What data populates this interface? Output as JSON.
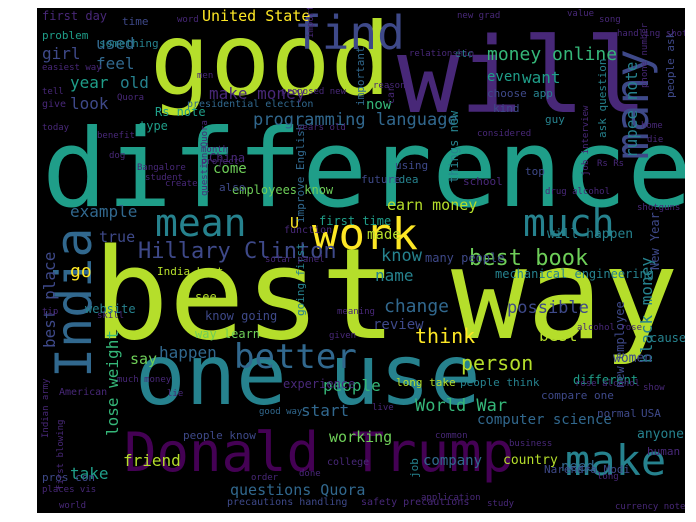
{
  "colors": {
    "background": "#000000",
    "palette": [
      "#440154",
      "#482878",
      "#3e4989",
      "#31688e",
      "#26828e",
      "#1f9e89",
      "#35b779",
      "#6ece58",
      "#b5de2b",
      "#fde725"
    ]
  },
  "words": [
    {
      "text": "difference",
      "color": "#1f9e89"
    },
    {
      "text": "best",
      "color": "#b5de2b"
    },
    {
      "text": "way",
      "color": "#b5de2b"
    },
    {
      "text": "good",
      "color": "#b5de2b"
    },
    {
      "text": "will",
      "color": "#482878"
    },
    {
      "text": "one",
      "color": "#26828e"
    },
    {
      "text": "use",
      "color": "#26828e"
    },
    {
      "text": "Donald Trump",
      "color": "#440154"
    },
    {
      "text": "India",
      "color": "#31688e"
    },
    {
      "text": "find",
      "color": "#3e4989"
    },
    {
      "text": "many",
      "color": "#3e4989"
    },
    {
      "text": "work",
      "color": "#fde725"
    },
    {
      "text": "mean",
      "color": "#26828e"
    },
    {
      "text": "much",
      "color": "#26828e"
    },
    {
      "text": "make",
      "color": "#26828e"
    },
    {
      "text": "better",
      "color": "#31688e"
    },
    {
      "text": "Hillary Clinton",
      "color": "#3e4989"
    },
    {
      "text": "best book",
      "color": "#6ece58"
    },
    {
      "text": "United State",
      "color": "#fde725"
    },
    {
      "text": "money online",
      "color": "#35b779"
    },
    {
      "text": "programming language",
      "color": "#31688e"
    },
    {
      "text": "make money",
      "color": "#482878"
    },
    {
      "text": "earn money",
      "color": "#b5de2b"
    },
    {
      "text": "best place",
      "color": "#3e4989"
    },
    {
      "text": "lose weight",
      "color": "#35b779"
    },
    {
      "text": "black money",
      "color": "#26828e"
    },
    {
      "text": "World War",
      "color": "#35b779"
    },
    {
      "text": "questions Quora",
      "color": "#31688e"
    },
    {
      "text": "rupee note",
      "color": "#26828e"
    },
    {
      "text": "computer science",
      "color": "#31688e"
    },
    {
      "text": "possible",
      "color": "#3e4989"
    },
    {
      "text": "person",
      "color": "#b5de2b"
    },
    {
      "text": "happen",
      "color": "#31688e"
    },
    {
      "text": "think",
      "color": "#fde725"
    },
    {
      "text": "change",
      "color": "#31688e"
    },
    {
      "text": "review",
      "color": "#3e4989"
    },
    {
      "text": "know",
      "color": "#26828e"
    },
    {
      "text": "name",
      "color": "#26828e"
    },
    {
      "text": "made",
      "color": "#b5de2b"
    },
    {
      "text": "people",
      "color": "#35b779"
    },
    {
      "text": "start",
      "color": "#31688e"
    },
    {
      "text": "friend",
      "color": "#b5de2b"
    },
    {
      "text": "take",
      "color": "#1f9e89"
    },
    {
      "text": "say",
      "color": "#6ece58"
    },
    {
      "text": "go",
      "color": "#fde725"
    },
    {
      "text": "true",
      "color": "#3e4989"
    },
    {
      "text": "example",
      "color": "#31688e"
    },
    {
      "text": "year",
      "color": "#1f9e89"
    },
    {
      "text": "old",
      "color": "#26828e"
    },
    {
      "text": "look",
      "color": "#3e4989"
    },
    {
      "text": "feel",
      "color": "#31688e"
    },
    {
      "text": "used",
      "color": "#31688e"
    },
    {
      "text": "girl",
      "color": "#3e4989"
    },
    {
      "text": "now",
      "color": "#35b779"
    },
    {
      "text": "want",
      "color": "#1f9e89"
    },
    {
      "text": "even",
      "color": "#1f9e89"
    },
    {
      "text": "come",
      "color": "#6ece58"
    },
    {
      "text": "U",
      "color": "#fde725"
    },
    {
      "text": "need",
      "color": "#31688e"
    },
    {
      "text": "country",
      "color": "#b5de2b"
    },
    {
      "text": "company",
      "color": "#31688e"
    },
    {
      "text": "working",
      "color": "#6ece58"
    },
    {
      "text": "women",
      "color": "#3e4989"
    },
    {
      "text": "cause",
      "color": "#26828e"
    },
    {
      "text": "different",
      "color": "#1f9e89"
    },
    {
      "text": "anyone",
      "color": "#26828e"
    },
    {
      "text": "many people",
      "color": "#3e4989"
    },
    {
      "text": "mechanical engineering",
      "color": "#26828e"
    },
    {
      "text": "will happen",
      "color": "#26828e"
    },
    {
      "text": "employees know",
      "color": "#6ece58"
    },
    {
      "text": "things new",
      "color": "#26828e"
    },
    {
      "text": "New Year",
      "color": "#3e4989"
    },
    {
      "text": "first time",
      "color": "#1f9e89"
    },
    {
      "text": "long take",
      "color": "#b5de2b"
    },
    {
      "text": "people think",
      "color": "#26828e"
    },
    {
      "text": "India best",
      "color": "#b5de2b"
    },
    {
      "text": "website",
      "color": "#26828e"
    },
    {
      "text": "see",
      "color": "#b5de2b"
    },
    {
      "text": "know going",
      "color": "#3e4989"
    },
    {
      "text": "way learn",
      "color": "#6ece58"
    },
    {
      "text": "experience",
      "color": "#482878"
    },
    {
      "text": "best",
      "color": "#b5de2b"
    },
    {
      "text": "new employee",
      "color": "#3e4989"
    },
    {
      "text": "first day",
      "color": "#482878"
    },
    {
      "text": "time",
      "color": "#3e4989"
    },
    {
      "text": "something",
      "color": "#26828e"
    },
    {
      "text": "problem",
      "color": "#1f9e89"
    },
    {
      "text": "Rs note",
      "color": "#1f9e89"
    },
    {
      "text": "presidential election",
      "color": "#31688e"
    },
    {
      "text": "type",
      "color": "#1f9e89"
    },
    {
      "text": "China",
      "color": "#482878"
    },
    {
      "text": "also",
      "color": "#3e4989"
    },
    {
      "text": "using",
      "color": "#3e4989"
    },
    {
      "text": "idea",
      "color": "#26828e"
    },
    {
      "text": "school",
      "color": "#482878"
    },
    {
      "text": "future",
      "color": "#3e4989"
    },
    {
      "text": "top",
      "color": "#3e4989"
    },
    {
      "text": "function",
      "color": "#482878"
    },
    {
      "text": "improve English",
      "color": "#31688e"
    },
    {
      "text": "going first",
      "color": "#26828e"
    },
    {
      "text": "important",
      "color": "#31688e"
    },
    {
      "text": "choose",
      "color": "#3e4989"
    },
    {
      "text": "kind",
      "color": "#3e4989"
    },
    {
      "text": "guy",
      "color": "#26828e"
    },
    {
      "text": "app",
      "color": "#26828e"
    },
    {
      "text": "pros con",
      "color": "#3e4989"
    },
    {
      "text": "human",
      "color": "#482878"
    },
    {
      "text": "normal",
      "color": "#3e4989"
    },
    {
      "text": "USA",
      "color": "#3e4989"
    },
    {
      "text": "job",
      "color": "#26828e"
    },
    {
      "text": "ask question",
      "color": "#26828e"
    },
    {
      "text": "people ask",
      "color": "#3e4989"
    },
    {
      "text": "college",
      "color": "#482878"
    },
    {
      "text": "compare one",
      "color": "#3e4989"
    },
    {
      "text": "Narendra Modi",
      "color": "#3e4989"
    },
    {
      "text": "precautions handling",
      "color": "#3e4989"
    },
    {
      "text": "safety precautions",
      "color": "#482878"
    },
    {
      "text": "good way",
      "color": "#31688e"
    },
    {
      "text": "people know",
      "color": "#3e4989"
    },
    {
      "text": "American",
      "color": "#482878"
    },
    {
      "text": "student",
      "color": "#482878"
    },
    {
      "text": "Bangalore",
      "color": "#482878"
    },
    {
      "text": "create",
      "color": "#482878"
    },
    {
      "text": "give",
      "color": "#482878"
    },
    {
      "text": "etc",
      "color": "#26828e"
    },
    {
      "text": "car",
      "color": "#482878"
    },
    {
      "text": "Quora",
      "color": "#482878"
    },
    {
      "text": "world",
      "color": "#482878"
    },
    {
      "text": "tell",
      "color": "#482878"
    },
    {
      "text": "easiest way",
      "color": "#482878"
    },
    {
      "text": "relationship",
      "color": "#482878"
    },
    {
      "text": "men",
      "color": "#482878"
    },
    {
      "text": "reason",
      "color": "#482878"
    },
    {
      "text": "today",
      "color": "#482878"
    },
    {
      "text": "month",
      "color": "#482878"
    },
    {
      "text": "project",
      "color": "#482878"
    },
    {
      "text": "solar panel",
      "color": "#482878"
    },
    {
      "text": "business",
      "color": "#482878"
    },
    {
      "text": "application",
      "color": "#482878"
    },
    {
      "text": "common",
      "color": "#482878"
    },
    {
      "text": "live",
      "color": "#482878"
    },
    {
      "text": "study",
      "color": "#482878"
    },
    {
      "text": "value",
      "color": "#482878"
    },
    {
      "text": "word",
      "color": "#482878"
    },
    {
      "text": "much money",
      "color": "#482878"
    },
    {
      "text": "order",
      "color": "#482878"
    },
    {
      "text": "done",
      "color": "#482878"
    },
    {
      "text": "given",
      "color": "#482878"
    },
    {
      "text": "meaning",
      "color": "#482878"
    },
    {
      "text": "long",
      "color": "#482878"
    },
    {
      "text": "show",
      "color": "#482878"
    },
    {
      "text": "currency note",
      "color": "#482878"
    },
    {
      "text": "phone number",
      "color": "#482878"
    },
    {
      "text": "job interview",
      "color": "#482878"
    },
    {
      "text": "benefit",
      "color": "#482878"
    },
    {
      "text": "tip",
      "color": "#482878"
    },
    {
      "text": "dog",
      "color": "#482878"
    },
    {
      "text": "Rs Rs",
      "color": "#482878"
    },
    {
      "text": "home",
      "color": "#482878"
    },
    {
      "text": "die",
      "color": "#482878"
    },
    {
      "text": "important thing",
      "color": "#482878"
    },
    {
      "text": "handling shotguns",
      "color": "#482878"
    },
    {
      "text": "shotguns proposed",
      "color": "#482878"
    },
    {
      "text": "years old",
      "color": "#482878"
    },
    {
      "text": "considered",
      "color": "#482878"
    },
    {
      "text": "alcohol rose",
      "color": "#482878"
    },
    {
      "text": "first blowing",
      "color": "#482878"
    },
    {
      "text": "Indian army",
      "color": "#482878"
    },
    {
      "text": "skill",
      "color": "#482878"
    },
    {
      "text": "places vis",
      "color": "#482878"
    },
    {
      "text": "question Quora",
      "color": "#482878"
    },
    {
      "text": "proposed new",
      "color": "#482878"
    },
    {
      "text": "new grad",
      "color": "#482878"
    },
    {
      "text": "rose alcohol",
      "color": "#482878"
    },
    {
      "text": "song",
      "color": "#482878"
    },
    {
      "text": "drug alcohol",
      "color": "#482878"
    },
    {
      "text": "lie",
      "color": "#482878"
    },
    {
      "text": "legit",
      "color": "#482878"
    }
  ]
}
